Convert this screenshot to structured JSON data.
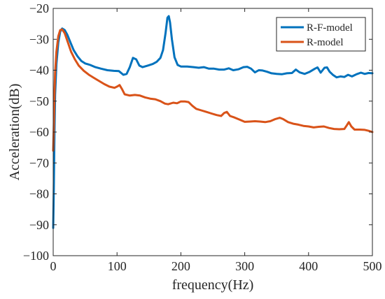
{
  "chart_data": {
    "type": "line",
    "xlabel": "frequency(Hz)",
    "ylabel": "Acceleration(dB)",
    "xlim": [
      0,
      500
    ],
    "ylim": [
      -100,
      -20
    ],
    "x_ticks": [
      0,
      100,
      200,
      300,
      400,
      500
    ],
    "y_ticks": [
      -100,
      -90,
      -80,
      -70,
      -60,
      -50,
      -40,
      -30,
      -20
    ],
    "x_tick_labels": [
      "0",
      "100",
      "200",
      "300",
      "400",
      "500"
    ],
    "y_tick_labels": [
      "−100",
      "−90",
      "−80",
      "−70",
      "−60",
      "−50",
      "−40",
      "−30",
      "−20"
    ],
    "grid": false,
    "legend_position": "top-right",
    "series": [
      {
        "name": "R-F-model",
        "color": "#0072BD",
        "points": [
          [
            0,
            -91
          ],
          [
            1,
            -78
          ],
          [
            2,
            -60
          ],
          [
            3,
            -48
          ],
          [
            5,
            -38
          ],
          [
            8,
            -31
          ],
          [
            11,
            -27.5
          ],
          [
            14,
            -26.5
          ],
          [
            18,
            -27
          ],
          [
            22,
            -28.5
          ],
          [
            27,
            -31
          ],
          [
            32,
            -33.5
          ],
          [
            38,
            -35.5
          ],
          [
            44,
            -37
          ],
          [
            50,
            -37.8
          ],
          [
            58,
            -38.3
          ],
          [
            66,
            -39
          ],
          [
            75,
            -39.5
          ],
          [
            85,
            -40
          ],
          [
            95,
            -40.2
          ],
          [
            103,
            -40.3
          ],
          [
            110,
            -41.5
          ],
          [
            115,
            -41.2
          ],
          [
            120,
            -39
          ],
          [
            125,
            -36
          ],
          [
            130,
            -36.5
          ],
          [
            135,
            -38.5
          ],
          [
            140,
            -39
          ],
          [
            148,
            -38.5
          ],
          [
            156,
            -38
          ],
          [
            162,
            -37.3
          ],
          [
            168,
            -36
          ],
          [
            172,
            -33.5
          ],
          [
            176,
            -28
          ],
          [
            179,
            -23
          ],
          [
            181,
            -22.5
          ],
          [
            183,
            -24.5
          ],
          [
            186,
            -30
          ],
          [
            190,
            -35.8
          ],
          [
            195,
            -38.3
          ],
          [
            200,
            -38.8
          ],
          [
            210,
            -38.8
          ],
          [
            220,
            -39
          ],
          [
            228,
            -39.2
          ],
          [
            236,
            -39
          ],
          [
            244,
            -39.5
          ],
          [
            252,
            -39.5
          ],
          [
            260,
            -39.8
          ],
          [
            268,
            -39.8
          ],
          [
            275,
            -39.4
          ],
          [
            282,
            -40
          ],
          [
            290,
            -39.7
          ],
          [
            298,
            -39
          ],
          [
            304,
            -38.9
          ],
          [
            310,
            -39.5
          ],
          [
            316,
            -40.7
          ],
          [
            322,
            -40
          ],
          [
            328,
            -40.1
          ],
          [
            335,
            -40.5
          ],
          [
            342,
            -41
          ],
          [
            350,
            -41.2
          ],
          [
            358,
            -41.3
          ],
          [
            366,
            -41
          ],
          [
            374,
            -40.9
          ],
          [
            380,
            -39.8
          ],
          [
            386,
            -40.7
          ],
          [
            394,
            -41.2
          ],
          [
            402,
            -40.5
          ],
          [
            410,
            -39.5
          ],
          [
            414,
            -39.1
          ],
          [
            419,
            -40.8
          ],
          [
            425,
            -39.2
          ],
          [
            429,
            -39.1
          ],
          [
            433,
            -40.5
          ],
          [
            438,
            -41.5
          ],
          [
            444,
            -42.3
          ],
          [
            450,
            -42
          ],
          [
            456,
            -42.2
          ],
          [
            462,
            -41.5
          ],
          [
            468,
            -42
          ],
          [
            475,
            -41.3
          ],
          [
            482,
            -40.8
          ],
          [
            488,
            -41.2
          ],
          [
            494,
            -40.9
          ],
          [
            500,
            -41
          ]
        ]
      },
      {
        "name": "R-model",
        "color": "#D95319",
        "points": [
          [
            0,
            -66
          ],
          [
            1,
            -58
          ],
          [
            2,
            -48
          ],
          [
            3,
            -41
          ],
          [
            5,
            -34
          ],
          [
            8,
            -29
          ],
          [
            11,
            -27
          ],
          [
            14,
            -26.8
          ],
          [
            18,
            -28
          ],
          [
            23,
            -31
          ],
          [
            28,
            -34
          ],
          [
            34,
            -36.5
          ],
          [
            40,
            -38.5
          ],
          [
            48,
            -40.2
          ],
          [
            56,
            -41.5
          ],
          [
            64,
            -42.5
          ],
          [
            72,
            -43.5
          ],
          [
            80,
            -44.5
          ],
          [
            88,
            -45.3
          ],
          [
            96,
            -45.7
          ],
          [
            101,
            -45.2
          ],
          [
            104,
            -44.8
          ],
          [
            108,
            -46.2
          ],
          [
            112,
            -47.8
          ],
          [
            120,
            -48.2
          ],
          [
            128,
            -48
          ],
          [
            136,
            -48.2
          ],
          [
            144,
            -48.8
          ],
          [
            152,
            -49.2
          ],
          [
            160,
            -49.4
          ],
          [
            168,
            -50
          ],
          [
            175,
            -50.8
          ],
          [
            180,
            -51
          ],
          [
            188,
            -50.5
          ],
          [
            194,
            -50.7
          ],
          [
            200,
            -50.1
          ],
          [
            206,
            -50.1
          ],
          [
            212,
            -50.3
          ],
          [
            218,
            -51.5
          ],
          [
            224,
            -52.5
          ],
          [
            232,
            -53
          ],
          [
            240,
            -53.5
          ],
          [
            248,
            -54
          ],
          [
            256,
            -54.5
          ],
          [
            263,
            -54.8
          ],
          [
            268,
            -53.8
          ],
          [
            272,
            -53.5
          ],
          [
            277,
            -54.8
          ],
          [
            284,
            -55.3
          ],
          [
            292,
            -56
          ],
          [
            300,
            -56.7
          ],
          [
            308,
            -56.6
          ],
          [
            316,
            -56.5
          ],
          [
            324,
            -56.6
          ],
          [
            332,
            -56.8
          ],
          [
            340,
            -56.5
          ],
          [
            348,
            -55.8
          ],
          [
            355,
            -55.4
          ],
          [
            360,
            -55.8
          ],
          [
            368,
            -56.8
          ],
          [
            376,
            -57.3
          ],
          [
            384,
            -57.6
          ],
          [
            392,
            -58
          ],
          [
            400,
            -58.2
          ],
          [
            408,
            -58.5
          ],
          [
            416,
            -58.3
          ],
          [
            424,
            -58.2
          ],
          [
            432,
            -58.7
          ],
          [
            440,
            -59
          ],
          [
            448,
            -59.1
          ],
          [
            456,
            -59
          ],
          [
            460,
            -57.8
          ],
          [
            463,
            -56.8
          ],
          [
            467,
            -58.2
          ],
          [
            472,
            -59.2
          ],
          [
            480,
            -59.2
          ],
          [
            488,
            -59.3
          ],
          [
            494,
            -59.6
          ],
          [
            500,
            -60
          ]
        ]
      }
    ]
  }
}
